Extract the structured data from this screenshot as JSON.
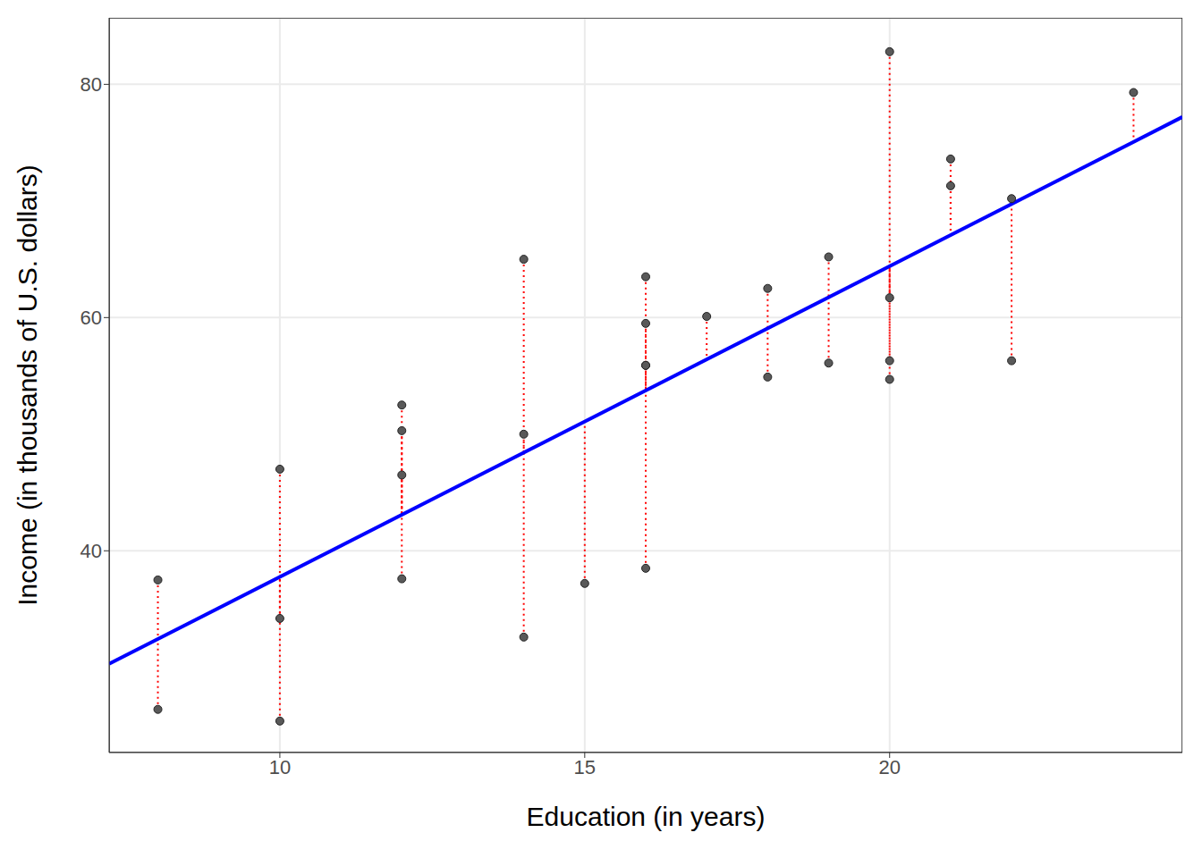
{
  "chart_data": {
    "type": "scatter",
    "x_label": "Education (in years)",
    "y_label": "Income (in thousands of U.S. dollars)",
    "x": [
      8,
      8,
      10,
      10,
      10,
      12,
      12,
      12,
      12,
      14,
      14,
      14,
      15,
      16,
      16,
      16,
      16,
      16,
      17,
      18,
      18,
      19,
      19,
      20,
      20,
      20,
      20,
      21,
      21,
      22,
      22,
      24
    ],
    "values": [
      37.5,
      26.4,
      47.0,
      34.2,
      25.4,
      52.5,
      50.3,
      46.5,
      37.6,
      65.0,
      50.0,
      32.6,
      37.2,
      63.5,
      59.5,
      55.9,
      55.9,
      38.5,
      60.1,
      62.5,
      54.9,
      65.2,
      56.1,
      82.8,
      61.7,
      56.3,
      54.7,
      73.6,
      71.3,
      70.2,
      56.3,
      79.3
    ],
    "fitted": [
      32.4,
      32.4,
      37.75,
      37.75,
      37.75,
      43.1,
      43.1,
      43.1,
      43.1,
      48.4,
      48.4,
      48.4,
      51.1,
      53.7,
      53.7,
      53.7,
      53.7,
      53.7,
      56.4,
      59.0,
      59.0,
      61.7,
      61.7,
      64.4,
      64.4,
      64.4,
      64.4,
      67.0,
      67.0,
      69.7,
      69.7,
      75.0
    ],
    "fit_line": {
      "x": [
        7.2,
        24.8
      ],
      "y": [
        30.3,
        77.2
      ],
      "color": "#0000ff"
    },
    "color": "#595959",
    "xlim": [
      7.2,
      24.8
    ],
    "ylim": [
      22.7,
      85.7
    ],
    "xticks": [
      10,
      15,
      20
    ],
    "yticks": [
      40,
      60,
      80
    ],
    "grid": true
  }
}
